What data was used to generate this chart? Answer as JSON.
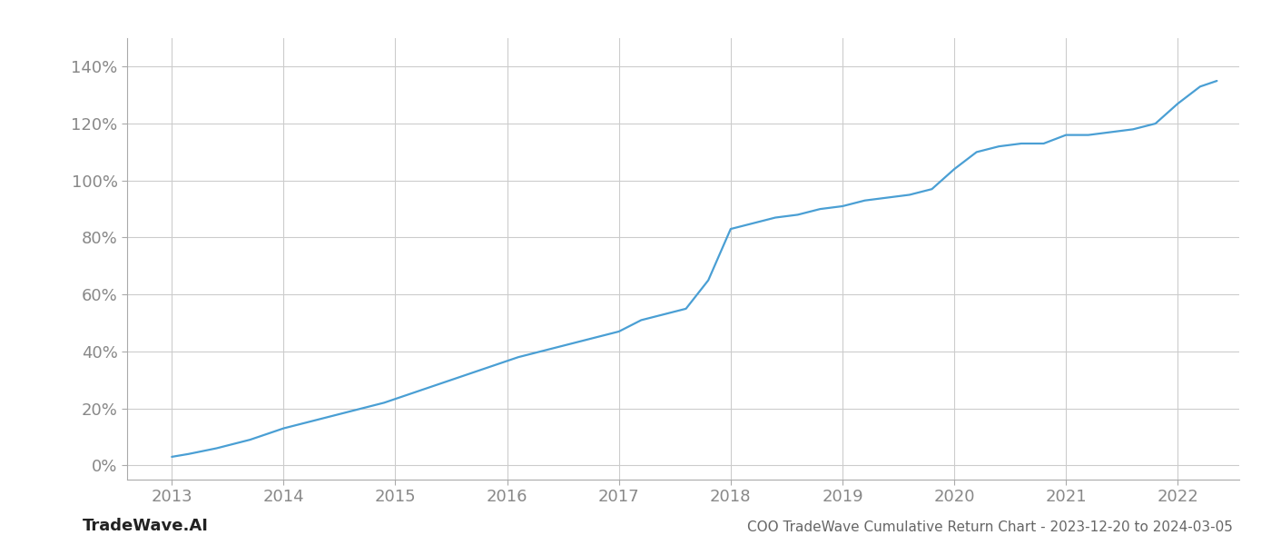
{
  "title": "COO TradeWave Cumulative Return Chart - 2023-12-20 to 2024-03-05",
  "watermark": "TradeWave.AI",
  "line_color": "#4a9fd4",
  "plot_bg_color": "#ffffff",
  "fig_bg_color": "#ffffff",
  "grid_color": "#cccccc",
  "x_years": [
    2013.0,
    2013.15,
    2013.4,
    2013.7,
    2014.0,
    2014.3,
    2014.6,
    2014.9,
    2015.2,
    2015.5,
    2015.8,
    2016.1,
    2016.4,
    2016.7,
    2016.9,
    2017.0,
    2017.1,
    2017.2,
    2017.4,
    2017.6,
    2017.8,
    2018.0,
    2018.2,
    2018.4,
    2018.6,
    2018.8,
    2019.0,
    2019.2,
    2019.4,
    2019.6,
    2019.8,
    2020.0,
    2020.2,
    2020.4,
    2020.6,
    2020.8,
    2021.0,
    2021.2,
    2021.4,
    2021.6,
    2021.8,
    2022.0,
    2022.2,
    2022.35
  ],
  "y_values": [
    3,
    4,
    6,
    9,
    13,
    16,
    19,
    22,
    26,
    30,
    34,
    38,
    41,
    44,
    46,
    47,
    49,
    51,
    53,
    55,
    65,
    83,
    85,
    87,
    88,
    90,
    91,
    93,
    94,
    95,
    97,
    104,
    110,
    112,
    113,
    113,
    116,
    116,
    117,
    118,
    120,
    127,
    133,
    135
  ],
  "xlim": [
    2012.6,
    2022.55
  ],
  "ylim": [
    -5,
    150
  ],
  "yticks": [
    0,
    20,
    40,
    60,
    80,
    100,
    120,
    140
  ],
  "xticks": [
    2013,
    2014,
    2015,
    2016,
    2017,
    2018,
    2019,
    2020,
    2021,
    2022
  ],
  "line_width": 1.6,
  "tick_fontsize": 13,
  "footer_fontsize": 11,
  "watermark_fontsize": 13
}
